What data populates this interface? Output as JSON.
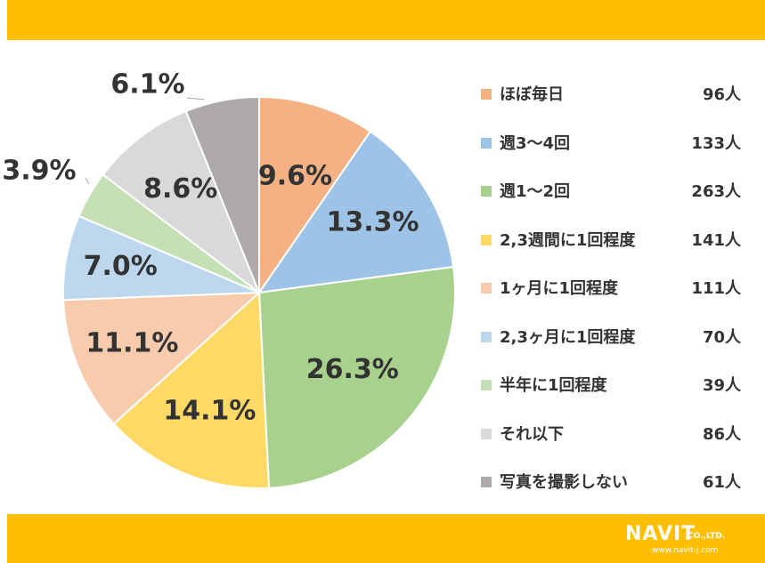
{
  "chart_data": {
    "type": "pie",
    "start_angle_deg": 0,
    "direction": "clockwise",
    "slices": [
      {
        "label": "ほぼ毎日",
        "count": "96人",
        "percent": 9.6,
        "percent_label": "9.6%",
        "color": "#f4b183"
      },
      {
        "label": "週3～4回",
        "count": "133人",
        "percent": 13.3,
        "percent_label": "13.3%",
        "color": "#9dc3e6"
      },
      {
        "label": "週1～2回",
        "count": "263人",
        "percent": 26.3,
        "percent_label": "26.3%",
        "color": "#a9d18e"
      },
      {
        "label": "2,3週間に1回程度",
        "count": "141人",
        "percent": 14.1,
        "percent_label": "14.1%",
        "color": "#ffd966"
      },
      {
        "label": "1ヶ月に1回程度",
        "count": "111人",
        "percent": 11.1,
        "percent_label": "11.1%",
        "color": "#f8cbad"
      },
      {
        "label": "2,3ヶ月に1回程度",
        "count": "70人",
        "percent": 7.0,
        "percent_label": "7.0%",
        "color": "#bdd7ee"
      },
      {
        "label": "半年に1回程度",
        "count": "39人",
        "percent": 3.9,
        "percent_label": "3.9%",
        "color": "#c5e0b4"
      },
      {
        "label": "それ以下",
        "count": "86人",
        "percent": 8.6,
        "percent_label": "8.6%",
        "color": "#d9d9d9"
      },
      {
        "label": "写真を撮影しない",
        "count": "61人",
        "percent": 6.1,
        "percent_label": "6.1%",
        "color": "#aeaaaa"
      }
    ],
    "legend_position": "right"
  },
  "logo": {
    "word": "NAVIT",
    "company": "CO.,LTD.",
    "url": "www.navit-j.com"
  },
  "colors": {
    "banner": "#fdbf00",
    "text": "#333333"
  }
}
